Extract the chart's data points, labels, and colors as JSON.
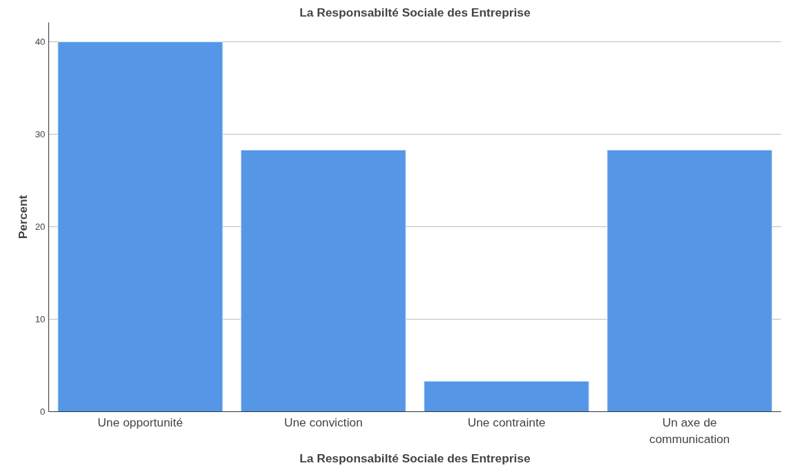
{
  "chart_data": {
    "type": "bar",
    "title": "La Responsabilté Sociale des Entreprise",
    "xlabel": "La Responsabilté Sociale des Entreprise",
    "ylabel": "Percent",
    "categories": [
      "Une opportunité",
      "Une conviction",
      "Une contrainte",
      "Un axe de communication"
    ],
    "values": [
      40,
      28.3,
      3.3,
      28.3
    ],
    "color": "#5596e6",
    "ylim": [
      0,
      42.1
    ],
    "yticks": [
      0,
      10,
      20,
      30,
      40
    ],
    "grid": "y"
  }
}
